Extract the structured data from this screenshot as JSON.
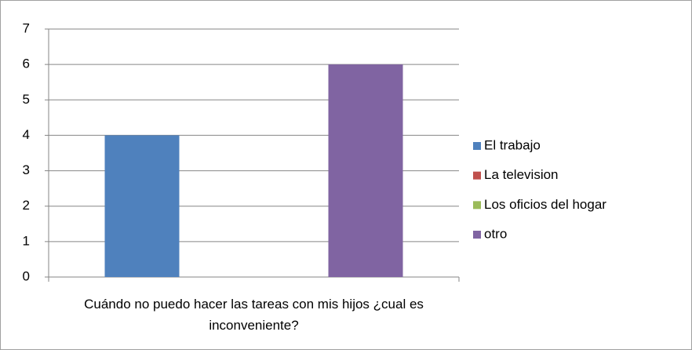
{
  "chart_data": {
    "type": "bar",
    "categories": [
      "Cuándo no puedo hacer las tareas con mis hijos ¿cual es inconveniente?"
    ],
    "series": [
      {
        "name": "El trabajo",
        "color": "#4f81bd",
        "values": [
          4
        ]
      },
      {
        "name": "La television",
        "color": "#c0504d",
        "values": [
          0
        ]
      },
      {
        "name": "Los oficios del hogar",
        "color": "#9bbb59",
        "values": [
          0
        ]
      },
      {
        "name": "otro",
        "color": "#8064a2",
        "values": [
          6
        ]
      }
    ],
    "ylim": [
      0,
      7
    ],
    "yticks": [
      0,
      1,
      2,
      3,
      4,
      5,
      6,
      7
    ],
    "grid": true,
    "legend": "right"
  }
}
